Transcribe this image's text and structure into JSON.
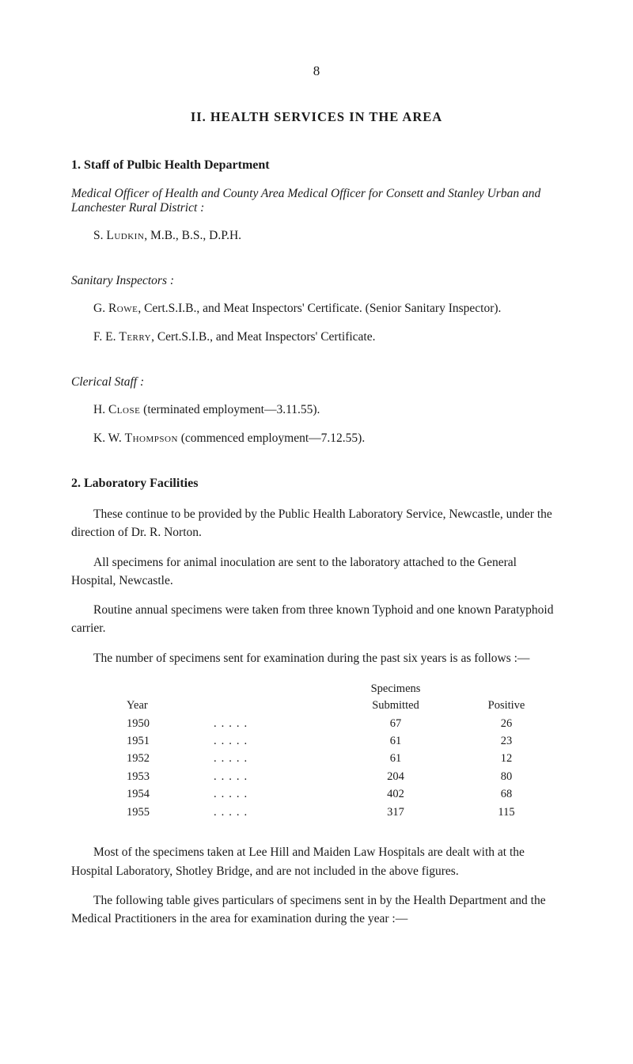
{
  "page_number": "8",
  "main_heading": "II.  HEALTH  SERVICES  IN  THE  AREA",
  "section1": {
    "heading": "1.   Staff of Pulbic Health Department",
    "subtitle": "Medical Officer of Health and County Area Medical Officer for Consett and Stanley Urban and Lanchester Rural District :",
    "staff_line": "S. Ludkin, M.B., B.S., D.P.H.",
    "inspectors_label": "Sanitary Inspectors :",
    "inspector1": "G. Rowe, Cert.S.I.B., and Meat Inspectors' Certificate.  (Senior Sanitary Inspector).",
    "inspector2": "F. E. Terry, Cert.S.I.B., and Meat Inspectors' Certificate.",
    "clerical_label": "Clerical Staff :",
    "clerical1": "H. Close (terminated employment—3.11.55).",
    "clerical2": "K. W. Thompson (commenced employment—7.12.55)."
  },
  "section2": {
    "heading": "2.   Laboratory Facilities",
    "para1": "These continue to be provided by the Public Health Laboratory Service, Newcastle, under the direction of Dr. R. Norton.",
    "para2": "All specimens for animal inoculation are sent to the laboratory attached to the General Hospital, Newcastle.",
    "para3": "Routine annual specimens were taken from three known Typhoid and one known Paratyphoid carrier.",
    "para4": "The number of specimens sent for examination during the past six years is as follows :—",
    "table": {
      "col_year": "Year",
      "col_spec1": "Specimens",
      "col_spec2": "Submitted",
      "col_pos": "Positive",
      "rows": [
        {
          "year": "1950",
          "spec": "67",
          "pos": "26"
        },
        {
          "year": "1951",
          "spec": "61",
          "pos": "23"
        },
        {
          "year": "1952",
          "spec": "61",
          "pos": "12"
        },
        {
          "year": "1953",
          "spec": "204",
          "pos": "80"
        },
        {
          "year": "1954",
          "spec": "402",
          "pos": "68"
        },
        {
          "year": "1955",
          "spec": "317",
          "pos": "115"
        }
      ]
    },
    "para5": "Most of the specimens taken at Lee Hill and Maiden Law Hospitals are dealt with at the Hospital Laboratory, Shotley Bridge, and are not included in the above figures.",
    "para6": "The following table gives particulars of specimens sent in by the Health Department and the Medical Practitioners in the area for examination during the year :—"
  }
}
